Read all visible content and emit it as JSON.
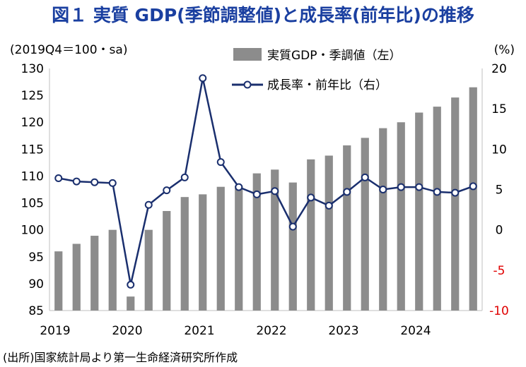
{
  "chart_data": {
    "type": "bar+line",
    "title": "図１ 実質 GDP(季節調整値)と成長率(前年比)の推移",
    "left_axis_label": "(2019Q4＝100・sa)",
    "right_axis_label": "(%)",
    "left_ylim": [
      85,
      130
    ],
    "left_ticks": [
      85,
      90,
      95,
      100,
      105,
      110,
      115,
      120,
      125,
      130
    ],
    "right_ylim": [
      -10,
      20
    ],
    "right_ticks": [
      -10,
      -5,
      0,
      5,
      10,
      15,
      20
    ],
    "right_tick_labels": [
      "-10",
      "-5",
      "0",
      "5",
      "10",
      "15",
      "20"
    ],
    "x_labels": [
      "2019",
      "2020",
      "2021",
      "2022",
      "2023",
      "2024"
    ],
    "quarters": [
      "2019Q1",
      "2019Q2",
      "2019Q3",
      "2019Q4",
      "2020Q1",
      "2020Q2",
      "2020Q3",
      "2020Q4",
      "2021Q1",
      "2021Q2",
      "2021Q3",
      "2021Q4",
      "2022Q1",
      "2022Q2",
      "2022Q3",
      "2022Q4",
      "2023Q1",
      "2023Q2",
      "2023Q3",
      "2023Q4",
      "2024Q1",
      "2024Q2",
      "2024Q3",
      "2024Q4"
    ],
    "series": [
      {
        "name": "実質GDP・季調値（左）",
        "kind": "bar",
        "axis": "left",
        "color": "#8c8c8c",
        "values": [
          96.0,
          97.4,
          98.9,
          100.0,
          87.6,
          100.0,
          103.5,
          106.1,
          106.6,
          108.0,
          108.2,
          110.5,
          111.2,
          108.8,
          113.1,
          113.8,
          115.7,
          117.1,
          118.9,
          120.0,
          121.8,
          122.9,
          124.6,
          126.5
        ]
      },
      {
        "name": "成長率・前年比（右）",
        "kind": "line",
        "axis": "right",
        "color": "#1a2f6e",
        "values": [
          6.4,
          6.0,
          5.9,
          5.8,
          -6.8,
          3.1,
          4.9,
          6.5,
          18.8,
          8.4,
          5.3,
          4.4,
          4.8,
          0.4,
          4.0,
          3.0,
          4.7,
          6.5,
          5.0,
          5.3,
          5.3,
          4.7,
          4.6,
          5.4
        ]
      }
    ],
    "source": "(出所)国家統計局より第一生命経済研究所作成"
  }
}
